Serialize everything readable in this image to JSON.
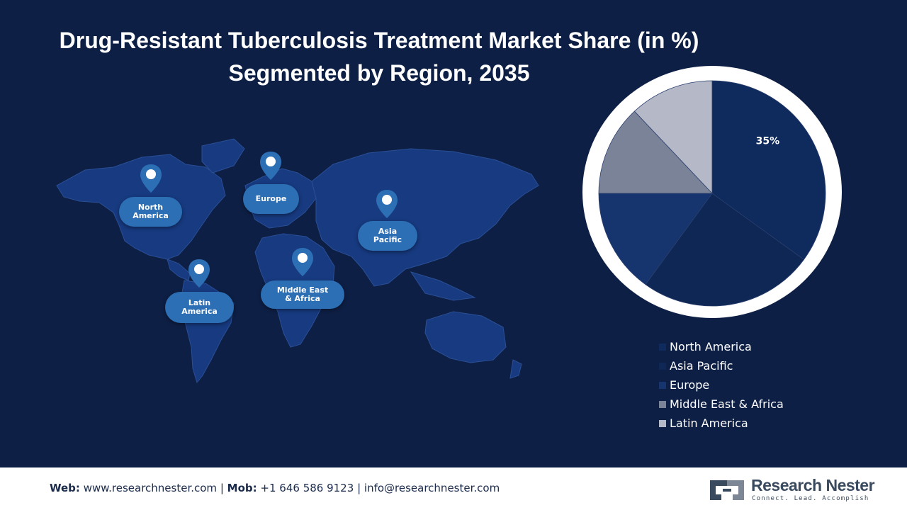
{
  "title": {
    "line1": "Drug-Resistant Tuberculosis Treatment Market Share (in %)",
    "line2": "Segmented by Region, 2035"
  },
  "map": {
    "regions": [
      {
        "line1": "North",
        "line2": "America"
      },
      {
        "line1": "Europe",
        "line2": ""
      },
      {
        "line1": "Asia",
        "line2": "Pacific"
      },
      {
        "line1": "Latin",
        "line2": "America"
      },
      {
        "line1": "Middle East",
        "line2": "& Africa"
      }
    ]
  },
  "chart_data": {
    "type": "pie",
    "categories": [
      "North America",
      "Asia Pacific",
      "Europe",
      "Middle East & Africa",
      "Latin America"
    ],
    "values": [
      35,
      25,
      15,
      13,
      12
    ],
    "colors": [
      "#0f2a5c",
      "#0e2754",
      "#16346d",
      "#7b8399",
      "#b5b8c6"
    ],
    "labels": [
      "35%",
      "",
      "",
      "",
      ""
    ],
    "legend_position": "bottom-right"
  },
  "colors": {
    "background": "#0e1f45",
    "map_land": "#173a80",
    "pin": "#2c6fb5",
    "ring": "#ffffff"
  },
  "footer": {
    "web_label": "Web:",
    "web_value": "www.researchnester.com",
    "sep1": "|",
    "mob_label": "Mob:",
    "mob_value": "+1 646 586 9123",
    "sep2": "|",
    "email": "info@researchnester.com",
    "logo_name": "Research Nester",
    "logo_tagline": "Connect. Lead. Accomplish"
  }
}
